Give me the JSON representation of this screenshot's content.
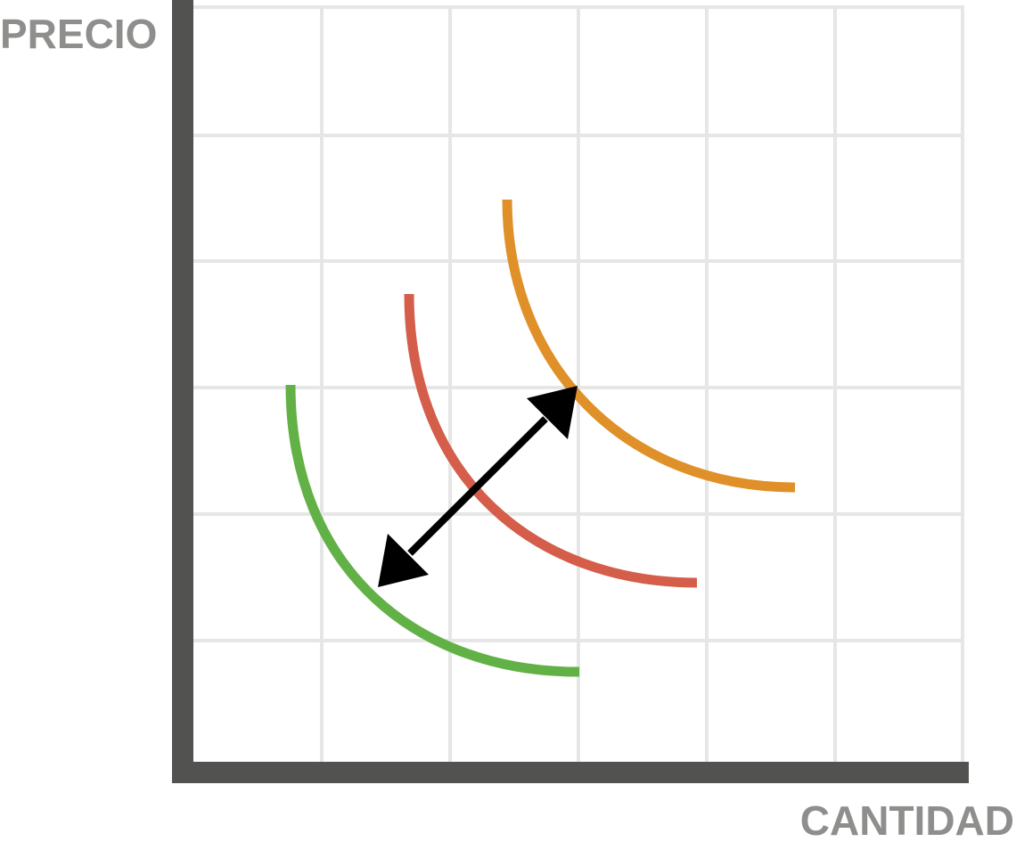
{
  "labels": {
    "y_axis": "PRECIO",
    "x_axis": "CANTIDAD"
  },
  "colors": {
    "axis": "#525250",
    "grid": "#e6e6e6",
    "label": "#8e8e8c",
    "arrow": "#000000",
    "curve_low": "#62b146",
    "curve_mid": "#d45e4a",
    "curve_high": "#e09028"
  },
  "icons": {
    "shift_arrow": "double-headed-arrow"
  }
}
